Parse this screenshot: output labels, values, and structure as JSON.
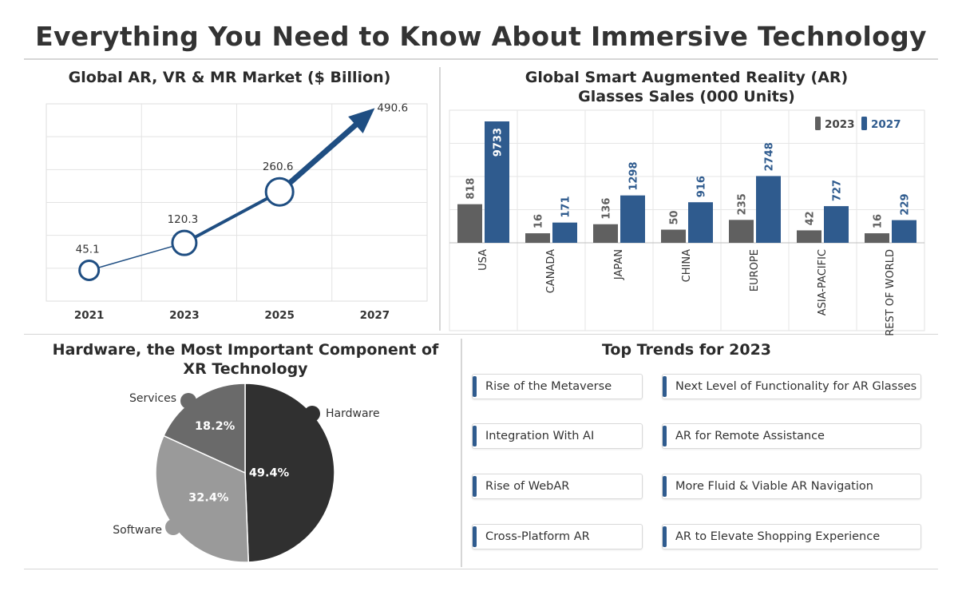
{
  "page_title": "Everything You Need to Know About Immersive Technology",
  "chart_data": [
    {
      "type": "line",
      "title": "Global AR, VR & MR Market ($ Billion)",
      "x": [
        "2021",
        "2023",
        "2025",
        "2027"
      ],
      "values": [
        45.1,
        120.3,
        260.6,
        490.6
      ],
      "labels": [
        "45.1",
        "120.3",
        "260.6",
        "490.6"
      ],
      "grid": true,
      "color": "#1f4e82"
    },
    {
      "type": "bar",
      "title_line1": "Global Smart Augmented Reality (AR)",
      "title_line2": "Glasses Sales (000 Units)",
      "categories": [
        "USA",
        "CANADA",
        "JAPAN",
        "CHINA",
        "EUROPE",
        "ASIA-PACIFIC",
        "REST OF WORLD"
      ],
      "series": [
        {
          "name": "2023",
          "values": [
            818,
            16,
            136,
            50,
            235,
            42,
            16
          ],
          "labels": [
            "818",
            "16",
            "136",
            "50",
            "235",
            "42",
            "16"
          ],
          "color": "#606060"
        },
        {
          "name": "2027",
          "values": [
            9733,
            171,
            1298,
            916,
            2748,
            727,
            229
          ],
          "labels": [
            "9733",
            "171",
            "1298",
            "916",
            "2748",
            "727",
            "229"
          ],
          "color": "#2f5b8e"
        }
      ],
      "legend": "top-right",
      "grid": true
    },
    {
      "type": "pie",
      "title_line1": "Hardware, the Most Important Component of",
      "title_line2": "XR Technology",
      "slices": [
        {
          "name": "Hardware",
          "value": 49.4,
          "label": "49.4%",
          "color": "#303030"
        },
        {
          "name": "Software",
          "value": 32.4,
          "label": "32.4%",
          "color": "#9a9a9a"
        },
        {
          "name": "Services",
          "value": 18.2,
          "label": "18.2%",
          "color": "#6a6a6a"
        }
      ]
    }
  ],
  "trends": {
    "title": "Top Trends for 2023",
    "items": [
      "Rise of the Metaverse",
      "Next Level of Functionality for AR Glasses",
      "Integration With AI",
      "AR for Remote Assistance",
      "Rise of WebAR",
      "More Fluid & Viable AR Navigation",
      "Cross-Platform AR",
      "AR to Elevate Shopping Experience"
    ],
    "accent": "#2f5b8e"
  }
}
